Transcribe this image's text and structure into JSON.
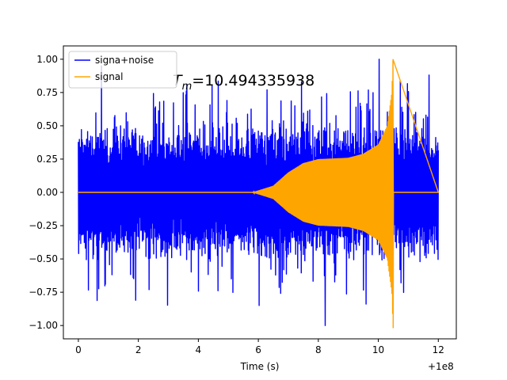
{
  "chart_data": {
    "type": "line",
    "title": "",
    "xlabel": "Time (s)",
    "ylabel": "",
    "x_offset_label": "+1e8",
    "xlim": [
      -0.5,
      12.6
    ],
    "ylim": [
      -1.1,
      1.1
    ],
    "xticks": [
      0,
      2,
      4,
      6,
      8,
      10,
      12
    ],
    "xtick_labels": [
      "0",
      "2",
      "4",
      "6",
      "8",
      "10",
      "12"
    ],
    "yticks": [
      -1.0,
      -0.75,
      -0.5,
      -0.25,
      0.0,
      0.25,
      0.5,
      0.75,
      1.0
    ],
    "ytick_labels": [
      "−1.00",
      "−0.75",
      "−0.50",
      "−0.25",
      "0.00",
      "0.25",
      "0.50",
      "0.75",
      "1.00"
    ],
    "grid": false,
    "legend_position": "top-left",
    "annotation": {
      "symbol": "T",
      "subscript": "m",
      "value_text": "=10.494335938"
    },
    "series": [
      {
        "name": "signa+noise",
        "color": "#0000ff",
        "x_range": [
          0,
          12
        ],
        "envelope_abs_max_typical": 0.6,
        "y_min": -1.0,
        "y_max": 1.0
      },
      {
        "name": "signal",
        "color": "#ffa500",
        "x_range": [
          0,
          12
        ],
        "onset_x": 5.8,
        "merger_x": 10.494335938,
        "envelope_points": [
          [
            5.8,
            0.0
          ],
          [
            6.5,
            0.05
          ],
          [
            7.0,
            0.15
          ],
          [
            7.5,
            0.22
          ],
          [
            8.0,
            0.25
          ],
          [
            9.0,
            0.26
          ],
          [
            9.5,
            0.29
          ],
          [
            10.0,
            0.36
          ],
          [
            10.3,
            0.5
          ],
          [
            10.45,
            0.75
          ],
          [
            10.49,
            1.0
          ]
        ],
        "y_min": -1.02,
        "y_max": 1.0
      }
    ]
  }
}
